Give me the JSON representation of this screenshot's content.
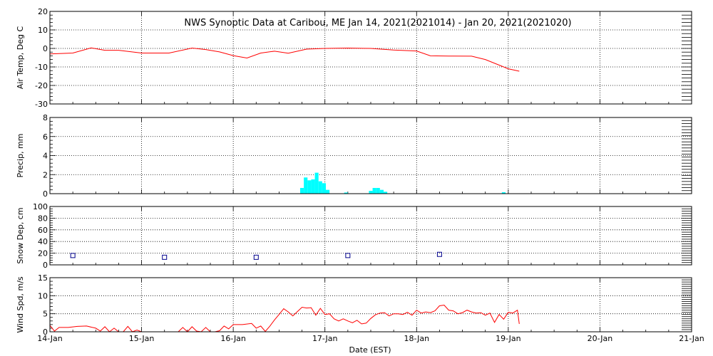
{
  "figure": {
    "title": "NWS Synoptic Data at Caribou, ME   Jan 14, 2021(2021014) - Jan 20, 2021(2021020)",
    "xlabel": "Date (EST)",
    "x_ticks": [
      "14-Jan",
      "15-Jan",
      "16-Jan",
      "17-Jan",
      "18-Jan",
      "19-Jan",
      "20-Jan",
      "21-Jan"
    ],
    "x_range_days": [
      14,
      21
    ]
  },
  "colors": {
    "air_temp": "#ff0000",
    "precip": "#00ffff",
    "snow_depth": "#00008b",
    "wind_speed": "#ff0000",
    "axes": "#000000",
    "grid": "#000000"
  },
  "chart_data": [
    {
      "type": "line",
      "id": "air_temp",
      "ylabel": "Air Temp, Deg C",
      "ylim": [
        -30,
        20
      ],
      "yticks": [
        -30,
        -20,
        -10,
        0,
        10,
        20
      ],
      "grid": true,
      "series": [
        {
          "x": [
            14.0,
            14.25,
            14.45,
            14.6,
            14.75,
            15.0,
            15.3,
            15.55,
            15.7,
            15.85,
            16.0,
            16.15,
            16.3,
            16.45,
            16.6,
            16.8,
            17.0,
            17.25,
            17.5,
            17.75,
            18.0,
            18.15,
            18.35,
            18.6,
            18.75,
            19.0,
            19.12
          ],
          "y": [
            -3,
            -2.5,
            0.3,
            -1,
            -1,
            -2.5,
            -2.5,
            0.2,
            -0.6,
            -1.9,
            -3.9,
            -5.2,
            -2.5,
            -1.5,
            -2.6,
            -0.4,
            0,
            0.2,
            0,
            -0.9,
            -1.4,
            -4,
            -4.1,
            -4.2,
            -6,
            -11,
            -12.3
          ]
        }
      ]
    },
    {
      "type": "bar",
      "id": "precip",
      "ylabel": "Precip, mm",
      "ylim": [
        0,
        8
      ],
      "yticks": [
        0,
        2,
        4,
        6,
        8
      ],
      "grid": true,
      "x": [
        16.75,
        16.79,
        16.83,
        16.87,
        16.91,
        16.95,
        16.99,
        17.03,
        17.23,
        17.5,
        17.54,
        17.58,
        17.62,
        17.66,
        18.95
      ],
      "values": [
        0.6,
        1.7,
        1.4,
        1.5,
        2.2,
        1.3,
        1.1,
        0.4,
        0.12,
        0.3,
        0.6,
        0.6,
        0.4,
        0.2,
        0.15
      ]
    },
    {
      "type": "scatter",
      "id": "snow_depth",
      "ylabel": "Snow Dep, cm",
      "ylim": [
        0,
        100
      ],
      "yticks": [
        0,
        20,
        40,
        60,
        80,
        100
      ],
      "grid": true,
      "x": [
        14.25,
        15.25,
        16.25,
        17.25,
        18.25
      ],
      "y": [
        16,
        13,
        13,
        16,
        18
      ]
    },
    {
      "type": "line",
      "id": "wind_speed",
      "ylabel": "Wind Spd, m/s",
      "ylim": [
        0,
        15
      ],
      "yticks": [
        0,
        5,
        10,
        15
      ],
      "grid": true,
      "series": [
        {
          "x": [
            14.0,
            14.05,
            14.1,
            14.2,
            14.3,
            14.4,
            14.5,
            14.55,
            14.6,
            14.65,
            14.7,
            14.75,
            14.8,
            14.85,
            14.9,
            14.95,
            15.0,
            15.1,
            15.2,
            15.3,
            15.4,
            15.45,
            15.5,
            15.55,
            15.6,
            15.65,
            15.7,
            15.75,
            15.8,
            15.85,
            15.9,
            15.95,
            16.0,
            16.1,
            16.2,
            16.25,
            16.3,
            16.35,
            16.4,
            16.45,
            16.5,
            16.55,
            16.6,
            16.65,
            16.7,
            16.75,
            16.8,
            16.85,
            16.9,
            16.95,
            17.0,
            17.05,
            17.1,
            17.15,
            17.2,
            17.25,
            17.3,
            17.35,
            17.4,
            17.45,
            17.5,
            17.55,
            17.6,
            17.65,
            17.7,
            17.75,
            17.8,
            17.85,
            17.9,
            17.95,
            18.0,
            18.05,
            18.1,
            18.15,
            18.2,
            18.25,
            18.3,
            18.35,
            18.4,
            18.45,
            18.5,
            18.55,
            18.6,
            18.65,
            18.7,
            18.75,
            18.8,
            18.85,
            18.9,
            18.95,
            19.0,
            19.05,
            19.1,
            19.12
          ],
          "y": [
            1.8,
            0.2,
            1.2,
            1.2,
            1.5,
            1.6,
            1,
            0.2,
            1.4,
            0,
            1,
            0,
            0,
            1.5,
            0,
            0.5,
            0,
            0,
            0,
            0,
            0,
            1.2,
            0,
            1.4,
            0.2,
            0,
            1.2,
            0,
            0,
            0.3,
            1.6,
            0.8,
            2,
            2,
            2.3,
            1,
            1.6,
            0.1,
            1.6,
            3.3,
            4.8,
            6.4,
            5.5,
            4.4,
            5.6,
            6.8,
            6.6,
            6.7,
            4.6,
            6.5,
            4.8,
            5,
            3.6,
            3,
            3.6,
            3,
            2.5,
            3.2,
            2.2,
            2.4,
            3.7,
            4.7,
            5.2,
            5.3,
            4.4,
            5,
            5,
            4.8,
            5.4,
            4.6,
            6,
            5.2,
            5.5,
            5.3,
            5.8,
            7.2,
            7.4,
            6,
            5.8,
            5,
            5.3,
            6,
            5.5,
            5.2,
            5.3,
            4.6,
            5.2,
            2.6,
            4.8,
            3.5,
            5.4,
            5.2,
            6,
            2.2
          ]
        }
      ]
    }
  ]
}
